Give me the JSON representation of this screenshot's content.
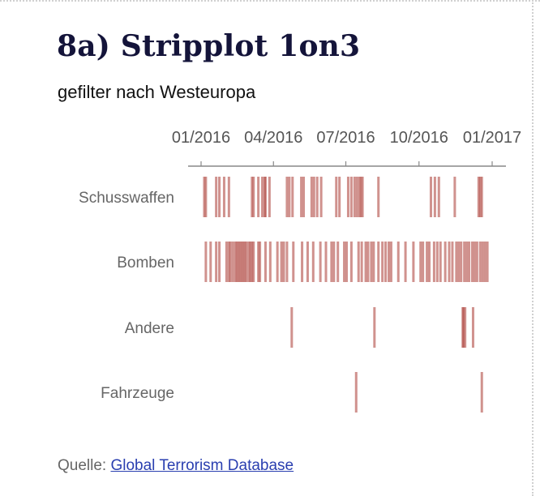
{
  "title": "8a) Stripplot 1on3",
  "subtitle": "gefilter nach Westeuropa",
  "source": {
    "prefix": "Quelle:",
    "link_text": "Global Terrorism Database"
  },
  "colors": {
    "strip": "#b04a42",
    "axis": "#888888",
    "title": "#14143a",
    "link": "#2a3fb0"
  },
  "chart_data": {
    "type": "strip",
    "x_axis": {
      "ticks": [
        "2016-01-01",
        "2016-04-01",
        "2016-07-01",
        "2016-10-01",
        "2017-01-01"
      ],
      "tick_labels": [
        "01/2016",
        "04/2016",
        "07/2016",
        "10/2016",
        "01/2017"
      ],
      "range": [
        "2015-12-19",
        "2017-01-17"
      ]
    },
    "categories": [
      "Schusswaffen",
      "Bomben",
      "Andere",
      "Fahrzeuge"
    ],
    "series": [
      {
        "name": "Schusswaffen",
        "dates": [
          "2016-01-05",
          "2016-01-07",
          "2016-01-20",
          "2016-01-24",
          "2016-01-30",
          "2016-02-05",
          "2016-03-05",
          "2016-03-07",
          "2016-03-13",
          "2016-03-18",
          "2016-03-21",
          "2016-03-22",
          "2016-03-27",
          "2016-04-18",
          "2016-04-21",
          "2016-04-25",
          "2016-05-06",
          "2016-05-09",
          "2016-05-19",
          "2016-05-22",
          "2016-05-26",
          "2016-05-31",
          "2016-06-19",
          "2016-06-23",
          "2016-07-04",
          "2016-07-08",
          "2016-07-12",
          "2016-07-15",
          "2016-07-18",
          "2016-07-20",
          "2016-07-22",
          "2016-08-11",
          "2016-10-16",
          "2016-10-21",
          "2016-10-26",
          "2016-11-15",
          "2016-12-15",
          "2016-12-17",
          "2016-12-19"
        ]
      },
      {
        "name": "Bomben",
        "dates": [
          "2016-01-07",
          "2016-01-13",
          "2016-01-20",
          "2016-01-24",
          "2016-02-02",
          "2016-02-05",
          "2016-02-07",
          "2016-02-10",
          "2016-02-13",
          "2016-02-15",
          "2016-02-17",
          "2016-02-19",
          "2016-02-21",
          "2016-02-23",
          "2016-02-25",
          "2016-02-27",
          "2016-03-01",
          "2016-03-03",
          "2016-03-05",
          "2016-03-07",
          "2016-03-13",
          "2016-03-15",
          "2016-03-22",
          "2016-03-28",
          "2016-04-06",
          "2016-04-11",
          "2016-04-14",
          "2016-04-18",
          "2016-04-26",
          "2016-05-07",
          "2016-05-14",
          "2016-05-21",
          "2016-05-30",
          "2016-06-06",
          "2016-06-13",
          "2016-06-16",
          "2016-06-21",
          "2016-06-29",
          "2016-07-02",
          "2016-07-08",
          "2016-07-17",
          "2016-07-21",
          "2016-07-26",
          "2016-07-29",
          "2016-08-02",
          "2016-08-05",
          "2016-08-11",
          "2016-08-16",
          "2016-08-20",
          "2016-08-24",
          "2016-08-27",
          "2016-09-05",
          "2016-09-14",
          "2016-09-24",
          "2016-10-03",
          "2016-10-06",
          "2016-10-11",
          "2016-10-14",
          "2016-10-20",
          "2016-10-24",
          "2016-10-28",
          "2016-11-03",
          "2016-11-08",
          "2016-11-12",
          "2016-11-17",
          "2016-11-20",
          "2016-11-23",
          "2016-11-27",
          "2016-11-30",
          "2016-12-03",
          "2016-12-07",
          "2016-12-10",
          "2016-12-13",
          "2016-12-17",
          "2016-12-20",
          "2016-12-23",
          "2016-12-26"
        ]
      },
      {
        "name": "Andere",
        "dates": [
          "2016-04-24",
          "2016-08-06",
          "2016-11-25",
          "2016-11-26",
          "2016-11-28",
          "2016-12-08"
        ]
      },
      {
        "name": "Fahrzeuge",
        "dates": [
          "2016-07-14",
          "2016-12-19"
        ]
      }
    ]
  }
}
